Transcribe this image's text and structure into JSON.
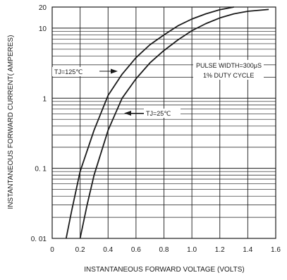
{
  "chart_data": {
    "type": "line",
    "xlabel": "INSTANTANEOUS FORWARD VOLTAGE (VOLTS)",
    "ylabel": "INSTANTANEOUS FORWARD CURRENT( AMPERES)",
    "xlim": [
      0,
      1.6
    ],
    "ylim": [
      0.01,
      20
    ],
    "yscale": "log",
    "grid": true,
    "x_ticks": [
      {
        "v": 0,
        "label": "0"
      },
      {
        "v": 0.2,
        "label": "0.2"
      },
      {
        "v": 0.4,
        "label": "0.4"
      },
      {
        "v": 0.6,
        "label": "0.6"
      },
      {
        "v": 0.8,
        "label": "0.8"
      },
      {
        "v": 1.0,
        "label": "1.0"
      },
      {
        "v": 1.2,
        "label": "1.2"
      },
      {
        "v": 1.4,
        "label": "1.4"
      },
      {
        "v": 1.6,
        "label": "1.6"
      }
    ],
    "y_ticks": [
      {
        "v": 20,
        "label": "20"
      },
      {
        "v": 10,
        "label": "10"
      },
      {
        "v": 1,
        "label": "1"
      },
      {
        "v": 0.1,
        "label": "0. 1"
      },
      {
        "v": 0.01,
        "label": "0. 01"
      }
    ],
    "series": [
      {
        "name": "TJ=125℃",
        "x": [
          0.1,
          0.14,
          0.2,
          0.3,
          0.4,
          0.5,
          0.6,
          0.7,
          0.8,
          0.9,
          1.0,
          1.1,
          1.2,
          1.3
        ],
        "y": [
          0.01,
          0.025,
          0.09,
          0.35,
          1.1,
          2.2,
          3.8,
          5.8,
          8.0,
          10.8,
          13.5,
          16.0,
          18.3,
          20.0
        ]
      },
      {
        "name": "TJ=25℃",
        "x": [
          0.2,
          0.25,
          0.3,
          0.4,
          0.5,
          0.6,
          0.7,
          0.8,
          0.9,
          1.0,
          1.1,
          1.2,
          1.3,
          1.4,
          1.55
        ],
        "y": [
          0.01,
          0.03,
          0.08,
          0.35,
          1.0,
          1.9,
          3.2,
          4.8,
          6.8,
          9.2,
          11.6,
          14.0,
          16.0,
          17.4,
          18.5
        ]
      }
    ],
    "annotations": {
      "tj125": "TJ=125℃",
      "tj25": "TJ=25℃",
      "pulse": "PULSE WIDTH=300μS",
      "duty": "1% DUTY CYCLE"
    }
  }
}
